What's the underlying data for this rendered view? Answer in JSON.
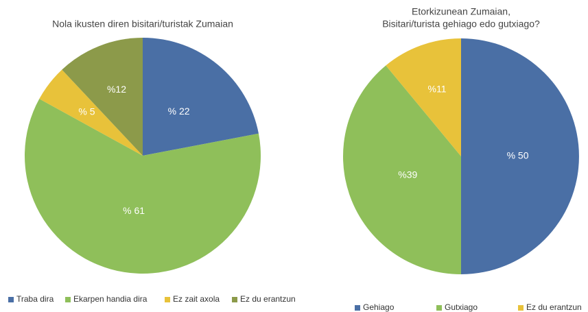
{
  "chart_data": [
    {
      "type": "pie",
      "title": [
        "Nola ikusten diren bisitari/turistak Zumaian"
      ],
      "categories": [
        "Traba dira",
        "Ekarpen handia dira",
        "Ez zait axola",
        "Ez du erantzun"
      ],
      "values": [
        22,
        61,
        5,
        12
      ],
      "value_labels": [
        "% 22",
        "% 61",
        "% 5",
        "%12"
      ],
      "colors": [
        "#4a6fa5",
        "#8fbf5a",
        "#e8c23a",
        "#8c9a4a"
      ]
    },
    {
      "type": "pie",
      "title": [
        "Etorkizunean Zumaian,",
        "Bisitari/turista gehiago edo gutxiago?"
      ],
      "categories": [
        "Gehiago",
        "Gutxiago",
        "Ez du erantzun"
      ],
      "values": [
        50,
        39,
        11
      ],
      "value_labels": [
        "% 50",
        "%39",
        "%11"
      ],
      "colors": [
        "#4a6fa5",
        "#8fbf5a",
        "#e8c23a"
      ]
    }
  ]
}
